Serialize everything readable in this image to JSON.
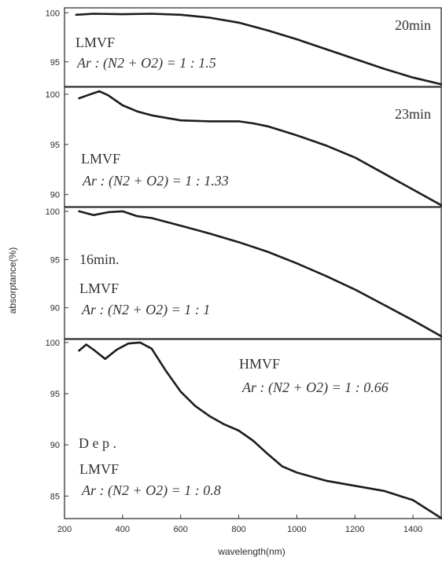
{
  "chart_data": {
    "type": "line",
    "xlabel": "wavelength(nm)",
    "ylabel": "absorptance(%)",
    "xlim": [
      200,
      1500
    ],
    "x_ticks": [
      "200",
      "400",
      "600",
      "800",
      "1000",
      "1200",
      "1400"
    ],
    "grid": false,
    "panels": [
      {
        "ylim": [
          92.5,
          100.5
        ],
        "y_ticks": [
          {
            "v": 100,
            "label": "100"
          },
          {
            "v": 95,
            "label": "95"
          }
        ],
        "annotations": [
          {
            "id": "time",
            "text": "20min"
          },
          {
            "id": "film",
            "text": "LMVF"
          },
          {
            "id": "ratio",
            "text": "Ar : (N2 + O2) = 1 : 1.5"
          }
        ],
        "x": [
          240,
          300,
          400,
          500,
          600,
          700,
          800,
          900,
          1000,
          1100,
          1200,
          1300,
          1400,
          1500
        ],
        "y": [
          99.8,
          99.9,
          99.85,
          99.9,
          99.8,
          99.5,
          99.0,
          98.2,
          97.3,
          96.3,
          95.3,
          94.3,
          93.4,
          92.7
        ]
      },
      {
        "ylim": [
          88.8,
          100.7
        ],
        "y_ticks": [
          {
            "v": 100,
            "label": "100"
          },
          {
            "v": 95,
            "label": "95"
          },
          {
            "v": 90,
            "label": "90"
          }
        ],
        "annotations": [
          {
            "id": "time",
            "text": "23min"
          },
          {
            "id": "film",
            "text": "LMVF"
          },
          {
            "id": "ratio",
            "text": "Ar : (N2 + O2) = 1 : 1.33"
          }
        ],
        "x": [
          250,
          280,
          320,
          350,
          400,
          450,
          500,
          600,
          700,
          800,
          850,
          900,
          1000,
          1100,
          1200,
          1300,
          1400,
          1500
        ],
        "y": [
          99.6,
          99.9,
          100.3,
          99.9,
          98.9,
          98.3,
          97.9,
          97.4,
          97.3,
          97.3,
          97.1,
          96.8,
          95.9,
          94.9,
          93.7,
          92.1,
          90.5,
          88.9
        ]
      },
      {
        "ylim": [
          86.8,
          100.4
        ],
        "y_ticks": [
          {
            "v": 100,
            "label": "100"
          },
          {
            "v": 95,
            "label": "95"
          },
          {
            "v": 90,
            "label": "90"
          }
        ],
        "annotations": [
          {
            "id": "time",
            "text": "16min."
          },
          {
            "id": "film",
            "text": "LMVF"
          },
          {
            "id": "ratio",
            "text": "Ar : (N2 + O2) = 1 : 1"
          }
        ],
        "x": [
          250,
          300,
          350,
          400,
          450,
          500,
          600,
          700,
          800,
          900,
          1000,
          1100,
          1200,
          1300,
          1400,
          1500
        ],
        "y": [
          100.0,
          99.6,
          99.9,
          100.0,
          99.5,
          99.3,
          98.5,
          97.7,
          96.8,
          95.8,
          94.6,
          93.3,
          91.9,
          90.3,
          88.7,
          87.0
        ]
      },
      {
        "ylim": [
          82.8,
          100.3
        ],
        "y_ticks": [
          {
            "v": 100,
            "label": "100"
          },
          {
            "v": 95,
            "label": "95"
          },
          {
            "v": 90,
            "label": "90"
          },
          {
            "v": 85,
            "label": "85"
          }
        ],
        "annotations": [
          {
            "id": "hmvf",
            "text": "HMVF"
          },
          {
            "id": "hratio",
            "text": "Ar : (N2 + O2) = 1 : 0.66"
          },
          {
            "id": "dep",
            "text": "D    e    p    ."
          },
          {
            "id": "film",
            "text": "LMVF"
          },
          {
            "id": "ratio",
            "text": "Ar : (N2 + O2) = 1 : 0.8"
          }
        ],
        "x": [
          250,
          275,
          300,
          340,
          380,
          420,
          460,
          500,
          550,
          600,
          650,
          700,
          750,
          800,
          850,
          900,
          950,
          1000,
          1100,
          1200,
          1300,
          1400,
          1500
        ],
        "y": [
          99.2,
          99.8,
          99.3,
          98.4,
          99.3,
          99.9,
          100.0,
          99.4,
          97.2,
          95.2,
          93.8,
          92.8,
          92.0,
          91.4,
          90.4,
          89.1,
          87.9,
          87.3,
          86.5,
          86.0,
          85.5,
          84.6,
          82.8
        ]
      }
    ]
  }
}
